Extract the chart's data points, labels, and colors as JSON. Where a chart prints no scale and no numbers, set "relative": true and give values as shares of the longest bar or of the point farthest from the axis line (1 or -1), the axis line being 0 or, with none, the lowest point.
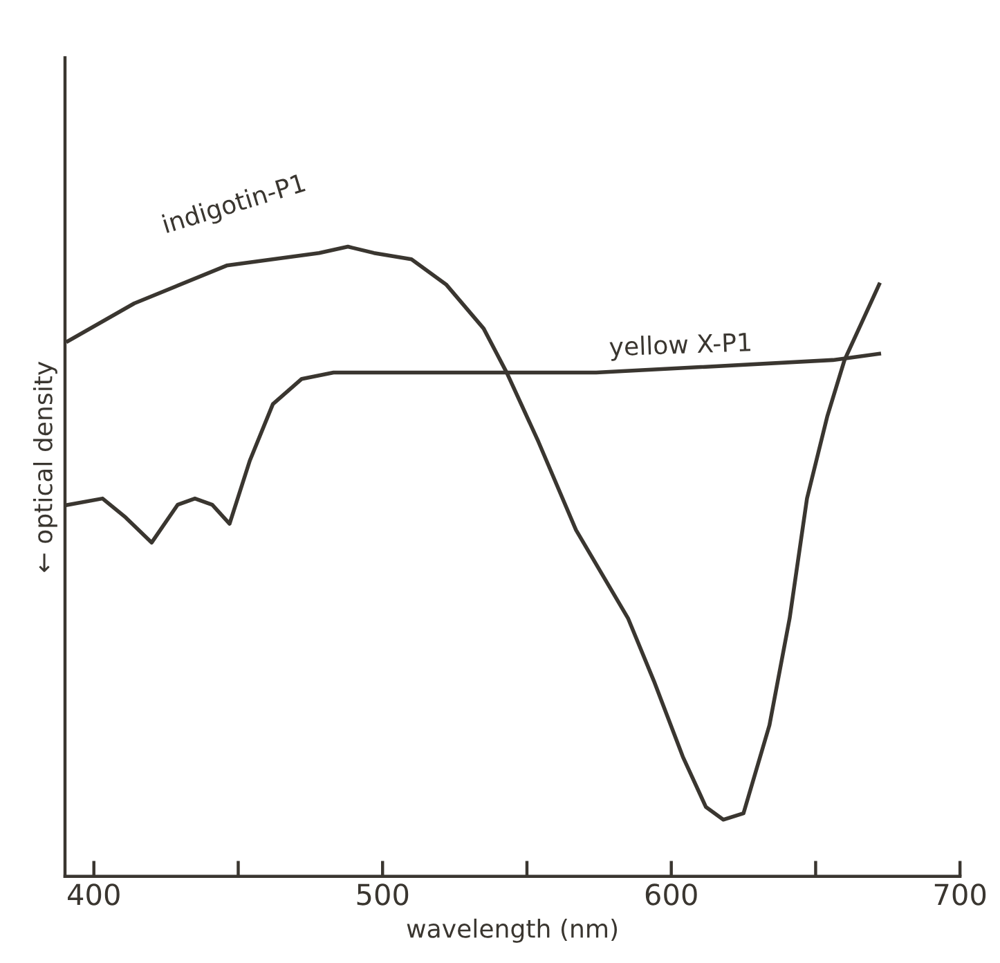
{
  "chart_data": {
    "type": "line",
    "xlabel": "wavelength (nm)",
    "ylabel": "← optical density",
    "relative": true,
    "xlim": [
      390,
      700
    ],
    "xticks": [
      400,
      {
        "value": 450,
        "label": null
      },
      500,
      {
        "value": 550,
        "label": null
      },
      600,
      {
        "value": 650,
        "label": null
      },
      700
    ],
    "tick_labels": "x",
    "grid": false,
    "legend": false,
    "marker": "none",
    "line_style": "solid",
    "series": [
      {
        "name": "indigotin-P1",
        "color": "#3a3630",
        "x": [
          391,
          414,
          446,
          478,
          488,
          497,
          510,
          522,
          535,
          543,
          554,
          567,
          585,
          594,
          604,
          612,
          618,
          625,
          634,
          641,
          647,
          654,
          660,
          666,
          672
        ],
        "values": [
          0.85,
          0.91,
          0.97,
          0.99,
          1.0,
          0.99,
          0.98,
          0.94,
          0.87,
          0.8,
          0.69,
          0.55,
          0.41,
          0.31,
          0.19,
          0.11,
          0.09,
          0.1,
          0.24,
          0.41,
          0.6,
          0.73,
          0.82,
          0.88,
          0.94
        ]
      },
      {
        "name": "yellow X-P1",
        "color": "#3a3630",
        "x": [
          391,
          403,
          411,
          420,
          429,
          435,
          441,
          447,
          454,
          462,
          472,
          483,
          543,
          574,
          656,
          672
        ],
        "values": [
          0.59,
          0.6,
          0.57,
          0.53,
          0.59,
          0.6,
          0.59,
          0.56,
          0.66,
          0.75,
          0.79,
          0.8,
          0.8,
          0.8,
          0.82,
          0.83
        ]
      }
    ]
  }
}
